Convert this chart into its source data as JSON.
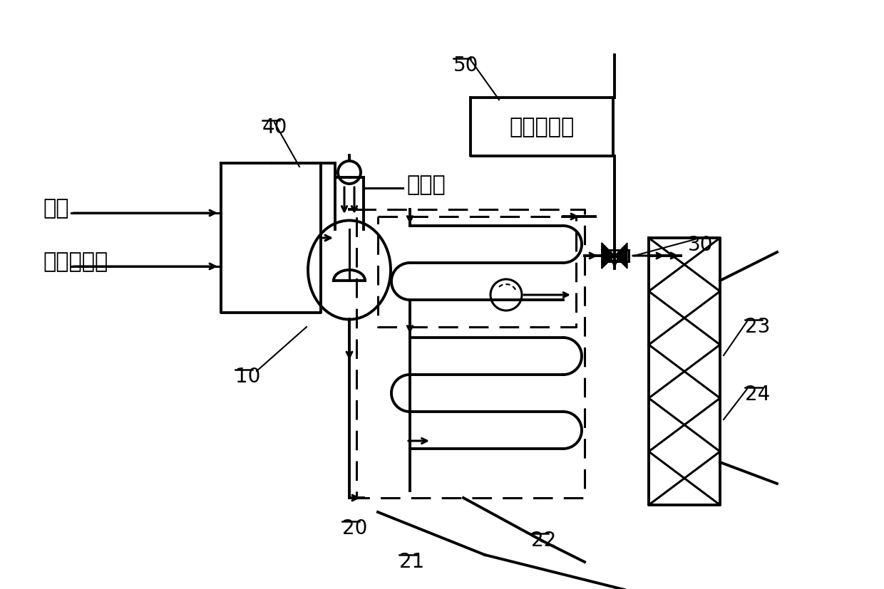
{
  "bg_color": "#ffffff",
  "line_color": "#000000",
  "labels": {
    "bingketone": "丙酮",
    "acetylene": "乙垄氪溶液",
    "catalyst": "催化剂",
    "terminator": "反应终止剂",
    "label_10": "10",
    "label_20": "20",
    "label_21": "21",
    "label_22": "22",
    "label_23": "23",
    "label_24": "24",
    "label_30": "30",
    "label_40": "40",
    "label_50": "50"
  },
  "figsize": [
    12.4,
    8.28
  ],
  "dpi": 100
}
